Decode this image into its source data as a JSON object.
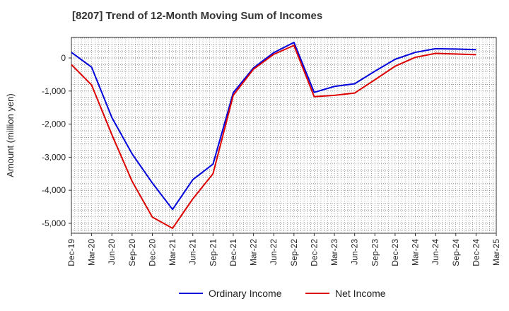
{
  "chart_data": {
    "type": "line",
    "title": "[8207]  Trend of 12-Month Moving Sum of Incomes",
    "xlabel": "",
    "ylabel": "Amount (million yen)",
    "ylim": [
      -5300,
      620
    ],
    "yticks": [
      0,
      -1000,
      -2000,
      -3000,
      -4000,
      -5000
    ],
    "ytick_labels": [
      "0",
      "-1,000",
      "-2,000",
      "-3,000",
      "-4,000",
      "-5,000"
    ],
    "categories": [
      "Dec-19",
      "Mar-20",
      "Jun-20",
      "Sep-20",
      "Dec-20",
      "Mar-21",
      "Jun-21",
      "Sep-21",
      "Dec-21",
      "Mar-22",
      "Jun-22",
      "Sep-22",
      "Dec-22",
      "Mar-23",
      "Jun-23",
      "Sep-23",
      "Dec-23",
      "Mar-24",
      "Jun-24",
      "Sep-24",
      "Dec-24",
      "Mar-25"
    ],
    "grid": true,
    "legend_position": "bottom-center",
    "series": [
      {
        "name": "Ordinary Income",
        "color": "#0000dd",
        "values": [
          170,
          -280,
          -1800,
          -2900,
          -3780,
          -4580,
          -3680,
          -3210,
          -1050,
          -300,
          160,
          470,
          -1040,
          -860,
          -780,
          -400,
          -40,
          170,
          280,
          270,
          250,
          null
        ]
      },
      {
        "name": "Net Income",
        "color": "#dd0000",
        "values": [
          -200,
          -820,
          -2320,
          -3730,
          -4810,
          -5150,
          -4260,
          -3500,
          -1130,
          -340,
          110,
          380,
          -1170,
          -1130,
          -1060,
          -660,
          -250,
          20,
          140,
          120,
          100,
          null
        ]
      }
    ]
  }
}
